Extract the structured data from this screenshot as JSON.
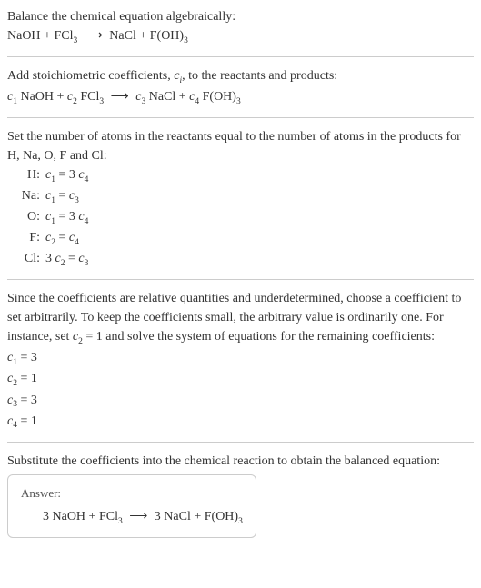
{
  "intro": {
    "line1": "Balance the chemical equation algebraically:",
    "eq_left1": "NaOH + FCl",
    "eq_s1": "3",
    "eq_arrow": "⟶",
    "eq_right1": " NaCl + F(OH)",
    "eq_s2": "3"
  },
  "step1": {
    "text_a": "Add stoichiometric coefficients, ",
    "ci_c": "c",
    "ci_i": "i",
    "text_b": ", to the reactants and products:",
    "c1": "c",
    "n1": "1",
    "t1": " NaOH + ",
    "c2": "c",
    "n2": "2",
    "t2": " FCl",
    "s1": "3",
    "t3": "  ",
    "arrow": "⟶",
    "t4": "  ",
    "c3": "c",
    "n3": "3",
    "t5": " NaCl + ",
    "c4": "c",
    "n4": "4",
    "t6": " F(OH)",
    "s2": "3"
  },
  "step2": {
    "text": "Set the number of atoms in the reactants equal to the number of atoms in the products for H, Na, O, F and Cl:",
    "rows": [
      {
        "el": "H:",
        "lhs_c": "c",
        "lhs_n": "1",
        "eq": " = 3 ",
        "rhs_c": "c",
        "rhs_n": "4"
      },
      {
        "el": "Na:",
        "lhs_c": "c",
        "lhs_n": "1",
        "eq": " = ",
        "rhs_c": "c",
        "rhs_n": "3"
      },
      {
        "el": "O:",
        "lhs_c": "c",
        "lhs_n": "1",
        "eq": " = 3 ",
        "rhs_c": "c",
        "rhs_n": "4"
      },
      {
        "el": "F:",
        "lhs_c": "c",
        "lhs_n": "2",
        "eq": " = ",
        "rhs_c": "c",
        "rhs_n": "4"
      },
      {
        "el": "Cl:",
        "pre": "3 ",
        "lhs_c": "c",
        "lhs_n": "2",
        "eq": " = ",
        "rhs_c": "c",
        "rhs_n": "3"
      }
    ]
  },
  "step3": {
    "text_a": "Since the coefficients are relative quantities and underdetermined, choose a coefficient to set arbitrarily. To keep the coefficients small, the arbitrary value is ordinarily one. For instance, set ",
    "c": "c",
    "n": "2",
    "eq": " = 1",
    "text_b": " and solve the system of equations for the remaining coefficients:",
    "results": [
      {
        "c": "c",
        "n": "1",
        "v": " = 3"
      },
      {
        "c": "c",
        "n": "2",
        "v": " = 1"
      },
      {
        "c": "c",
        "n": "3",
        "v": " = 3"
      },
      {
        "c": "c",
        "n": "4",
        "v": " = 1"
      }
    ]
  },
  "step4": {
    "text": "Substitute the coefficients into the chemical reaction to obtain the balanced equation:",
    "answer_label": "Answer:",
    "a1": "3 NaOH + FCl",
    "s1": "3",
    "arrow": "⟶",
    "a2": " 3 NaCl + F(OH)",
    "s2": "3"
  }
}
